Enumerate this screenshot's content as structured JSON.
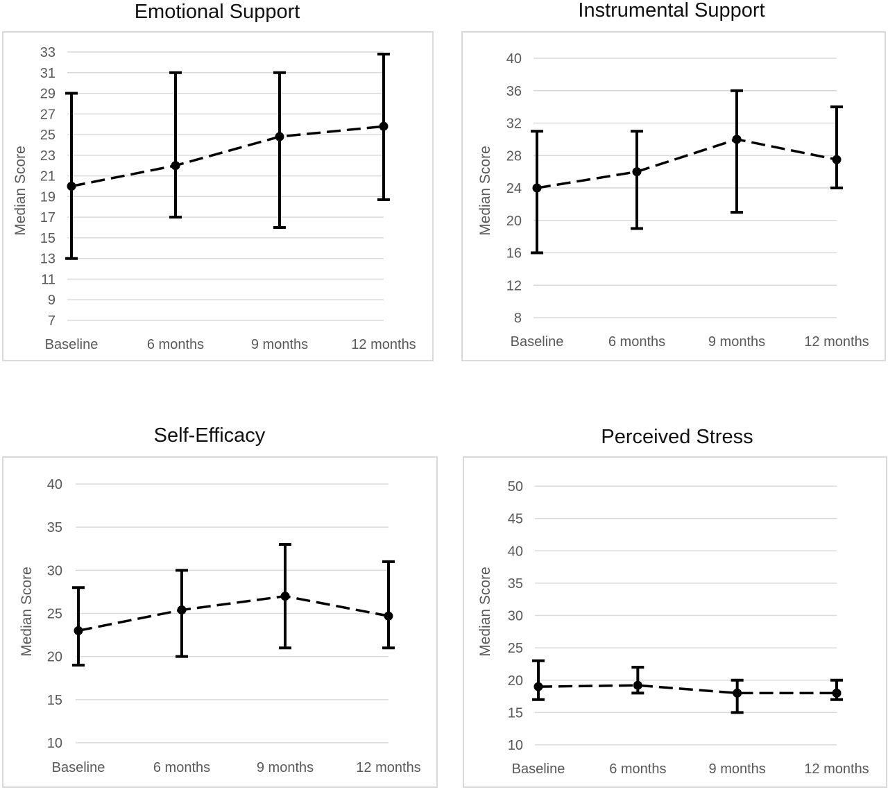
{
  "chart_data": [
    {
      "type": "line",
      "title": "Emotional Support",
      "ylabel": "Median Score",
      "categories": [
        "Baseline",
        "6 months",
        "9 months",
        "12 months"
      ],
      "values": [
        20,
        22,
        24.8,
        25.8
      ],
      "error_low": [
        13,
        17,
        16,
        18.7
      ],
      "error_high": [
        29,
        31,
        31,
        32.8
      ],
      "ylim": [
        7,
        33
      ],
      "yticks": [
        "7",
        "9",
        "11",
        "13",
        "15",
        "17",
        "19",
        "21",
        "23",
        "25",
        "27",
        "29",
        "31",
        "33"
      ],
      "grid": true,
      "line_style": "dashed",
      "color": "#000000"
    },
    {
      "type": "line",
      "title": "Instrumental Support",
      "ylabel": "Median Score",
      "categories": [
        "Baseline",
        "6 months",
        "9 months",
        "12 months"
      ],
      "values": [
        24,
        26,
        30,
        27.5
      ],
      "error_low": [
        16,
        19,
        21,
        24
      ],
      "error_high": [
        31,
        31,
        36,
        34
      ],
      "ylim": [
        8,
        40
      ],
      "yticks": [
        "8",
        "12",
        "16",
        "20",
        "24",
        "28",
        "32",
        "36",
        "40"
      ],
      "grid": true,
      "line_style": "dashed",
      "color": "#000000"
    },
    {
      "type": "line",
      "title": "Self-Efficacy",
      "ylabel": "Median Score",
      "categories": [
        "Baseline",
        "6 months",
        "9 months",
        "12 months"
      ],
      "values": [
        23,
        25.4,
        27,
        24.7
      ],
      "error_low": [
        19,
        20,
        21,
        21
      ],
      "error_high": [
        28,
        30,
        33,
        31
      ],
      "ylim": [
        10,
        40
      ],
      "yticks": [
        "10",
        "15",
        "20",
        "25",
        "30",
        "35",
        "40"
      ],
      "grid": true,
      "line_style": "dashed",
      "color": "#000000"
    },
    {
      "type": "line",
      "title": "Perceived Stress",
      "ylabel": "Median Score",
      "categories": [
        "Baseline",
        "6 months",
        "9 months",
        "12 months"
      ],
      "values": [
        19,
        19.2,
        18,
        18
      ],
      "error_low": [
        17,
        18,
        15,
        17
      ],
      "error_high": [
        23,
        22,
        20,
        20
      ],
      "ylim": [
        10,
        50
      ],
      "yticks": [
        "10",
        "15",
        "20",
        "25",
        "30",
        "35",
        "40",
        "45",
        "50"
      ],
      "grid": true,
      "line_style": "dashed",
      "color": "#000000"
    }
  ]
}
